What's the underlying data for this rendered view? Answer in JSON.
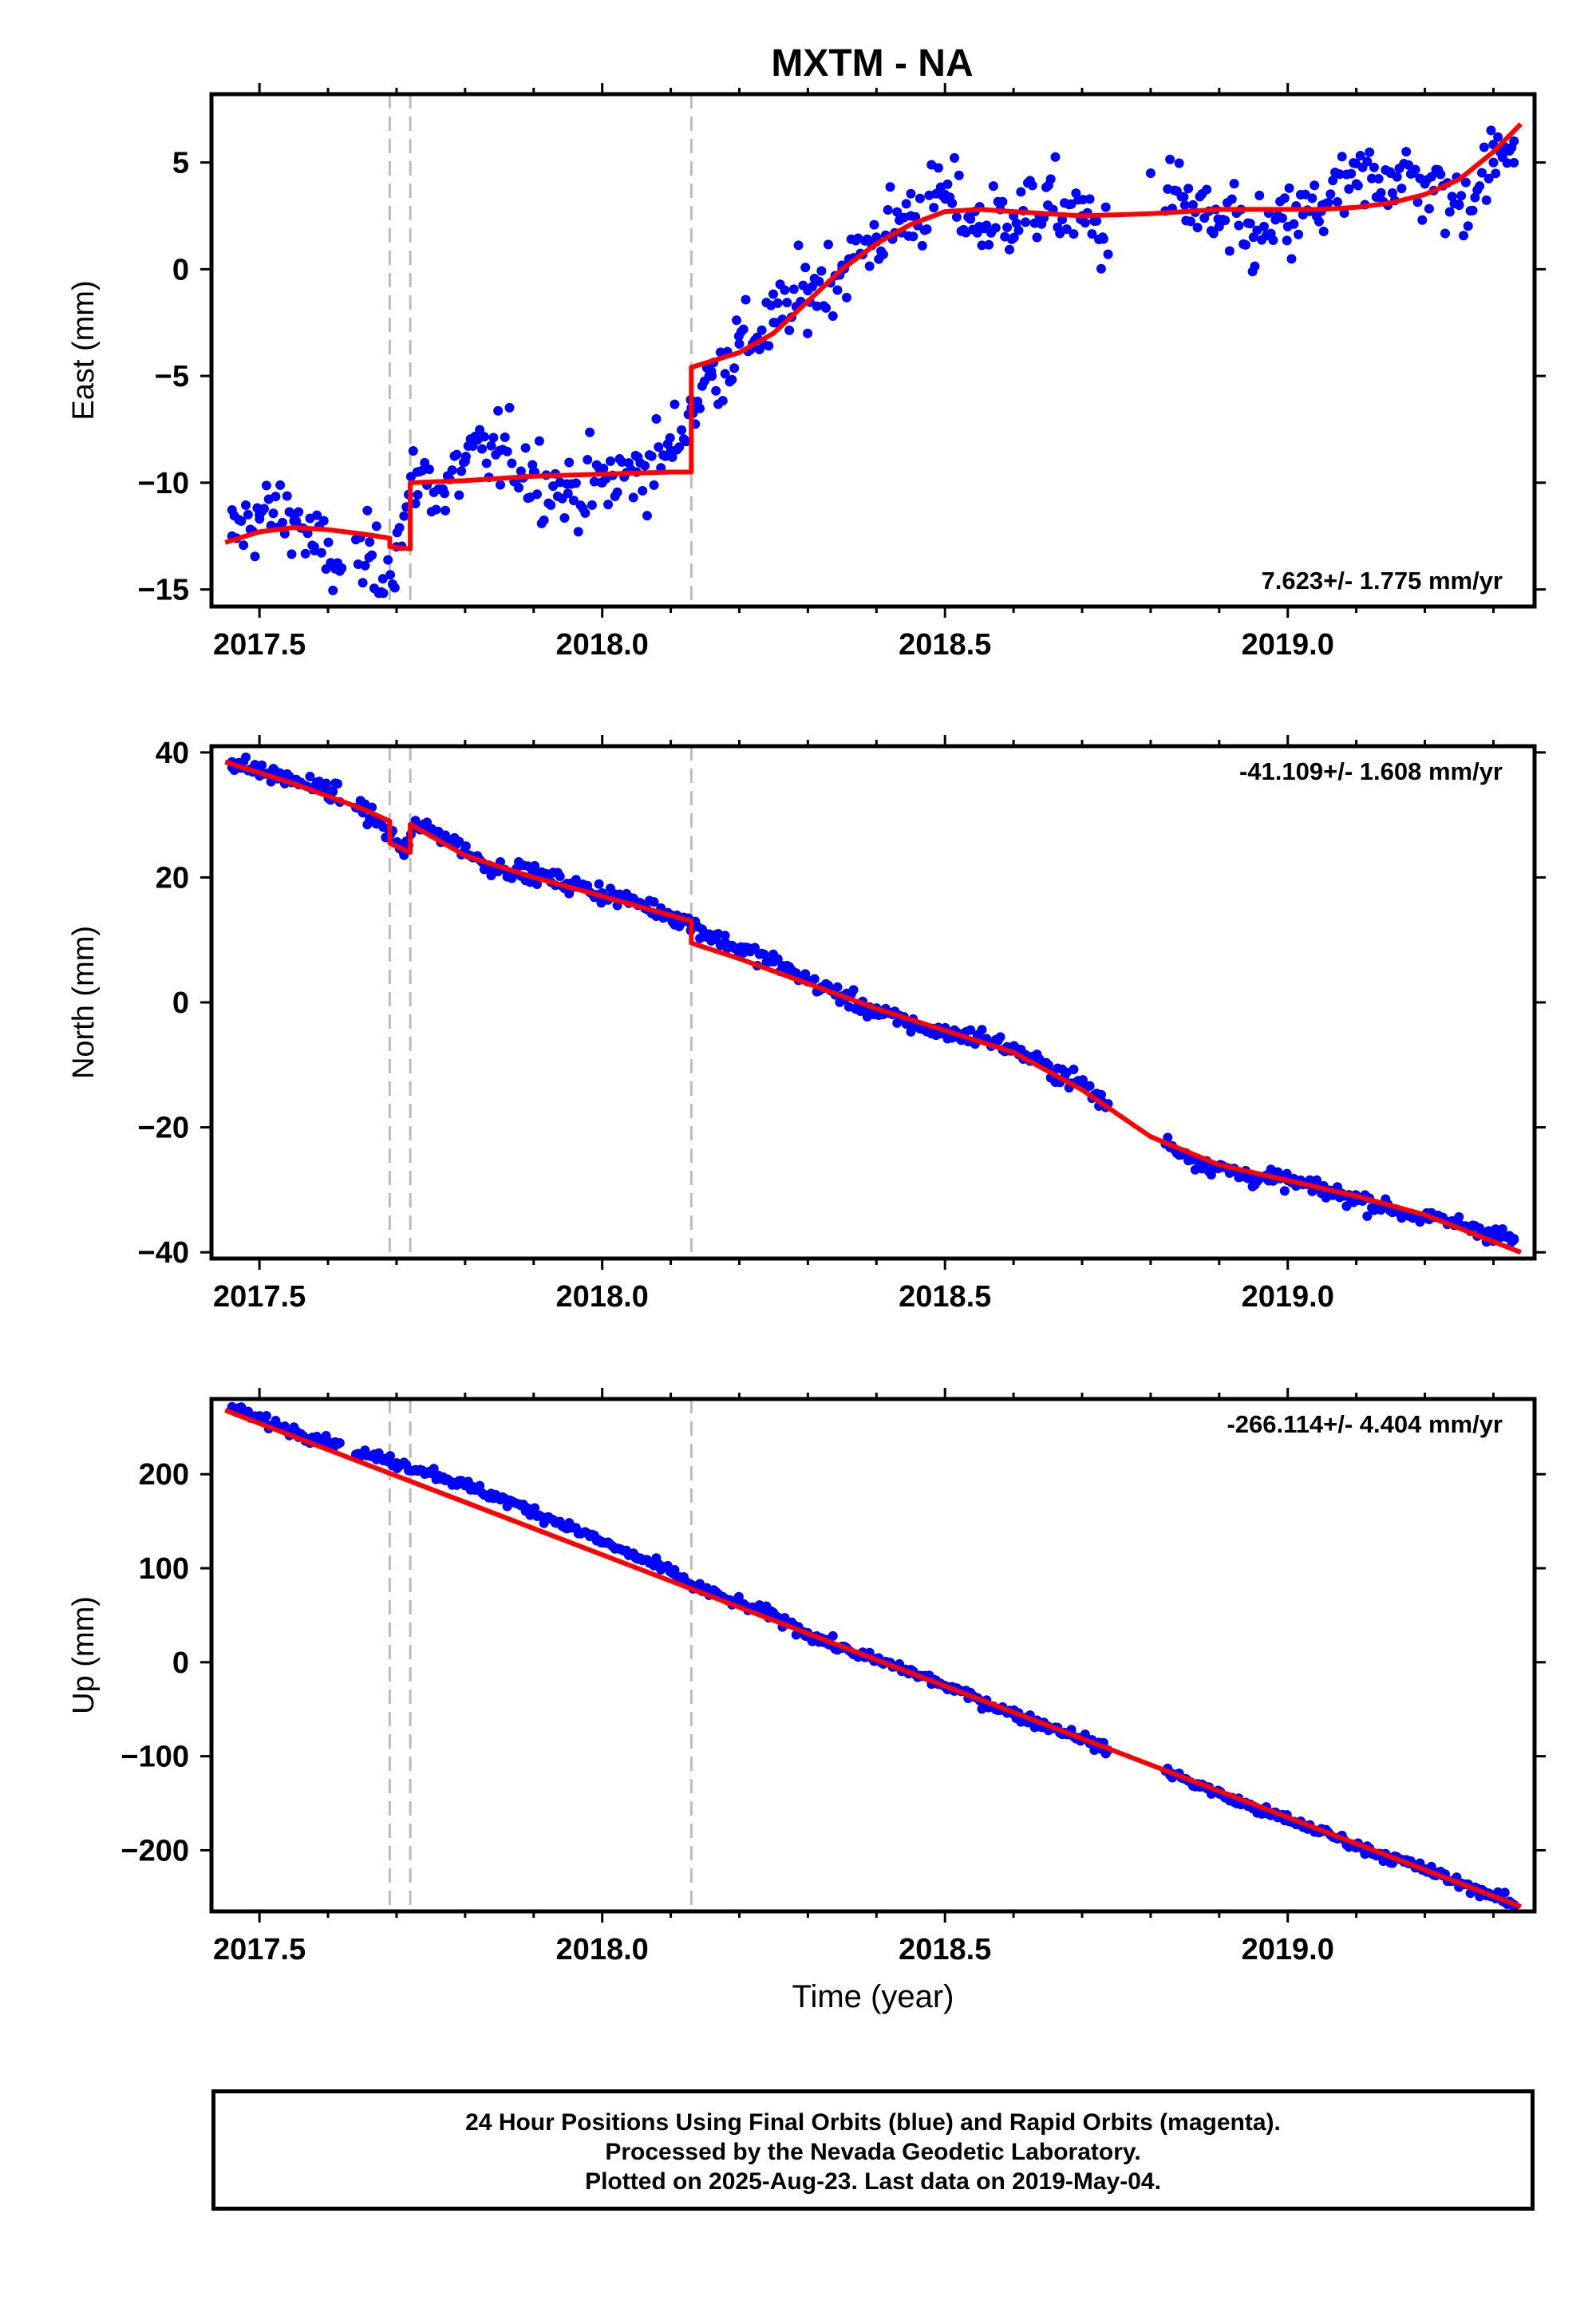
{
  "chart_data": [
    {
      "type": "scatter",
      "title": "MXTM - NA",
      "ylabel": "East (mm)",
      "xlabel": "",
      "xlim": [
        2017.43,
        2019.36
      ],
      "ylim": [
        -15.8,
        8.2
      ],
      "xticks": [
        2017.5,
        2018.0,
        2018.5,
        2019.0
      ],
      "xticklabels": [
        "2017.5",
        "2018.0",
        "2018.5",
        "2019.0"
      ],
      "yticks": [
        -15,
        -10,
        -5,
        0,
        5
      ],
      "yticklabels": [
        "−15",
        "−10",
        "−5",
        "0",
        "5"
      ],
      "rate_label": "7.623+/- 1.775 mm/yr",
      "rate_position": "bottom-right",
      "grid": false,
      "event_lines_x": [
        2017.69,
        2017.72,
        2018.13
      ],
      "scatter_color": "#0000ff",
      "fit_color": "#ff0000",
      "series": [
        {
          "kind": "points",
          "x": [
            2017.46,
            2017.5,
            2017.55,
            2017.58,
            2017.62,
            2017.66,
            2017.68,
            2017.7,
            2017.73,
            2017.77,
            2017.8,
            2017.85,
            2017.9,
            2017.95,
            2018.0,
            2018.05,
            2018.1,
            2018.13,
            2018.16,
            2018.2,
            2018.25,
            2018.3,
            2018.35,
            2018.4,
            2018.45,
            2018.5,
            2018.55,
            2018.6,
            2018.65,
            2018.7,
            2018.73,
            2018.8,
            2018.85,
            2018.9,
            2018.95,
            2019.0,
            2019.05,
            2019.1,
            2019.15,
            2019.2,
            2019.25,
            2019.3,
            2019.33
          ],
          "y": [
            -12.5,
            -11.5,
            -11.5,
            -13.0,
            -14.0,
            -13.5,
            -14.5,
            -13.0,
            -9.5,
            -10.5,
            -9.0,
            -8.5,
            -9.5,
            -10.5,
            -10.0,
            -9.5,
            -8.5,
            -6.5,
            -5.0,
            -3.5,
            -2.5,
            -1.0,
            0.0,
            1.5,
            2.5,
            3.5,
            2.0,
            2.5,
            3.0,
            2.5,
            1.5,
            4.5,
            3.0,
            2.0,
            1.5,
            2.0,
            3.0,
            4.0,
            4.5,
            4.0,
            3.0,
            5.0,
            6.0
          ]
        },
        {
          "kind": "fit",
          "x": [
            2017.45,
            2017.5,
            2017.55,
            2017.6,
            2017.65,
            2017.69,
            2017.69,
            2017.72,
            2017.72,
            2017.8,
            2017.9,
            2018.0,
            2018.1,
            2018.13,
            2018.13,
            2018.2,
            2018.25,
            2018.3,
            2018.35,
            2018.4,
            2018.45,
            2018.5,
            2018.55,
            2018.6,
            2018.7,
            2018.8,
            2018.9,
            2019.0,
            2019.05,
            2019.1,
            2019.15,
            2019.2,
            2019.25,
            2019.3,
            2019.34
          ],
          "y": [
            -12.8,
            -12.3,
            -12.1,
            -12.2,
            -12.4,
            -12.6,
            -13.0,
            -13.1,
            -10.0,
            -9.9,
            -9.7,
            -9.6,
            -9.5,
            -9.5,
            -4.6,
            -3.9,
            -3.0,
            -1.5,
            0.0,
            1.2,
            2.1,
            2.7,
            2.8,
            2.7,
            2.5,
            2.6,
            2.8,
            2.8,
            2.8,
            2.9,
            3.1,
            3.5,
            4.2,
            5.5,
            6.8
          ]
        }
      ]
    },
    {
      "type": "scatter",
      "title": "",
      "ylabel": "North (mm)",
      "xlabel": "",
      "xlim": [
        2017.43,
        2019.36
      ],
      "ylim": [
        -41,
        41
      ],
      "xticks": [
        2017.5,
        2018.0,
        2018.5,
        2019.0
      ],
      "xticklabels": [
        "2017.5",
        "2018.0",
        "2018.5",
        "2019.0"
      ],
      "yticks": [
        -40,
        -20,
        0,
        20,
        40
      ],
      "yticklabels": [
        "−40",
        "−20",
        "0",
        "20",
        "40"
      ],
      "rate_label": "-41.109+/- 1.608 mm/yr",
      "rate_position": "top-right",
      "grid": false,
      "event_lines_x": [
        2017.69,
        2017.72,
        2018.13
      ],
      "scatter_color": "#0000ff",
      "fit_color": "#ff0000",
      "series": [
        {
          "kind": "points",
          "x": [
            2017.46,
            2017.5,
            2017.55,
            2017.6,
            2017.65,
            2017.69,
            2017.71,
            2017.73,
            2017.78,
            2017.83,
            2017.9,
            2017.95,
            2018.0,
            2018.05,
            2018.1,
            2018.13,
            2018.18,
            2018.25,
            2018.3,
            2018.35,
            2018.4,
            2018.45,
            2018.5,
            2018.55,
            2018.6,
            2018.65,
            2018.7,
            2018.73,
            2018.83,
            2018.87,
            2018.9,
            2018.95,
            2019.0,
            2019.05,
            2019.1,
            2019.15,
            2019.2,
            2019.25,
            2019.3,
            2019.33
          ],
          "y": [
            38.5,
            37.0,
            35.5,
            34.0,
            31.0,
            27.0,
            24.0,
            28.5,
            26.0,
            22.0,
            20.5,
            19.0,
            17.5,
            16.0,
            14.0,
            12.5,
            9.5,
            6.5,
            3.5,
            1.0,
            -1.5,
            -3.5,
            -5.0,
            -5.5,
            -7.5,
            -10.5,
            -13.0,
            -16.0,
            -23.0,
            -25.5,
            -26.5,
            -28.0,
            -28.5,
            -30.0,
            -31.5,
            -33.0,
            -34.5,
            -35.5,
            -37.0,
            -38.0
          ]
        },
        {
          "kind": "fit",
          "x": [
            2017.45,
            2017.55,
            2017.65,
            2017.69,
            2017.69,
            2017.72,
            2017.72,
            2017.8,
            2017.9,
            2018.0,
            2018.13,
            2018.13,
            2018.2,
            2018.3,
            2018.4,
            2018.5,
            2018.6,
            2018.7,
            2018.8,
            2018.9,
            2019.0,
            2019.1,
            2019.2,
            2019.34
          ],
          "y": [
            38.5,
            35.0,
            31.0,
            29.0,
            25.5,
            24.0,
            28.5,
            23.5,
            20.0,
            17.0,
            13.0,
            9.5,
            7.0,
            3.0,
            -1.0,
            -4.5,
            -8.0,
            -14.0,
            -21.5,
            -26.0,
            -28.5,
            -31.0,
            -34.0,
            -40.0
          ]
        }
      ]
    },
    {
      "type": "scatter",
      "title": "",
      "ylabel": "Up (mm)",
      "xlabel": "Time (year)",
      "xlim": [
        2017.43,
        2019.36
      ],
      "ylim": [
        -265,
        280
      ],
      "xticks": [
        2017.5,
        2018.0,
        2018.5,
        2019.0
      ],
      "xticklabels": [
        "2017.5",
        "2018.0",
        "2018.5",
        "2019.0"
      ],
      "yticks": [
        -200,
        -100,
        0,
        100,
        200
      ],
      "yticklabels": [
        "−200",
        "−100",
        "0",
        "100",
        "200"
      ],
      "rate_label": "-266.114+/- 4.404 mm/yr",
      "rate_position": "top-right",
      "grid": false,
      "event_lines_x": [
        2017.69,
        2017.72,
        2018.13
      ],
      "scatter_color": "#0000ff",
      "fit_color": "#ff0000",
      "series": [
        {
          "kind": "points",
          "x": [
            2017.46,
            2017.5,
            2017.55,
            2017.6,
            2017.65,
            2017.7,
            2017.75,
            2017.8,
            2017.85,
            2017.9,
            2017.95,
            2018.0,
            2018.05,
            2018.1,
            2018.13,
            2018.2,
            2018.25,
            2018.3,
            2018.35,
            2018.4,
            2018.45,
            2018.5,
            2018.55,
            2018.6,
            2018.65,
            2018.7,
            2018.73,
            2018.83,
            2018.9,
            2018.95,
            2019.0,
            2019.05,
            2019.1,
            2019.15,
            2019.2,
            2019.25,
            2019.3,
            2019.33
          ],
          "y": [
            270,
            258,
            246,
            235,
            222,
            212,
            202,
            188,
            175,
            160,
            145,
            128,
            112,
            96,
            82,
            62,
            50,
            30,
            15,
            2,
            -10,
            -25,
            -40,
            -55,
            -68,
            -80,
            -92,
            -118,
            -140,
            -155,
            -168,
            -180,
            -195,
            -208,
            -220,
            -235,
            -248,
            -258
          ]
        },
        {
          "kind": "fit",
          "x": [
            2017.45,
            2019.34
          ],
          "y": [
            268,
            -260
          ]
        }
      ]
    }
  ],
  "caption": {
    "line1": "24 Hour Positions Using Final Orbits (blue) and Rapid Orbits (magenta).",
    "line2": "Processed by the Nevada Geodetic Laboratory.",
    "line3": "Plotted on 2025-Aug-23. Last data on 2019-May-04."
  }
}
